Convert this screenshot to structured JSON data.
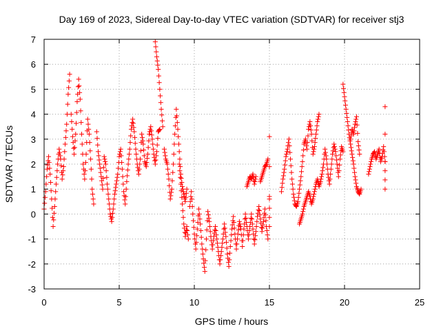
{
  "chart_data": {
    "type": "scatter",
    "title": "Day 169 of 2023, Sidereal Day-to-day VTEC variation (SDTVAR) for receiver stj3",
    "xlabel": "GPS time / hours",
    "ylabel": "SDTVAR / TECUs",
    "xlim": [
      0,
      25
    ],
    "ylim": [
      -3,
      7
    ],
    "x_ticks": [
      0,
      5,
      10,
      15,
      20,
      25
    ],
    "y_ticks": [
      -3,
      -2,
      -1,
      0,
      1,
      2,
      3,
      4,
      5,
      6,
      7
    ],
    "x_tick_labels": [
      "0",
      "5",
      "10",
      "15",
      "20",
      "25"
    ],
    "y_tick_labels": [
      "-3",
      "-2",
      "-1",
      "0",
      "1",
      "2",
      "3",
      "4",
      "5",
      "6",
      "7"
    ],
    "grid": true,
    "marker": "+",
    "color": "#ff0000",
    "series": [
      {
        "name": "sdtvar",
        "tracks": [
          [
            [
              0.0,
              0.2
            ],
            [
              0.1,
              0.9
            ],
            [
              0.2,
              1.8
            ],
            [
              0.3,
              2.3
            ],
            [
              0.4,
              1.6
            ],
            [
              0.5,
              0.6
            ],
            [
              0.6,
              -0.5
            ],
            [
              0.7,
              0.3
            ],
            [
              0.8,
              1.2
            ],
            [
              0.9,
              2.0
            ],
            [
              1.0,
              2.6
            ],
            [
              1.1,
              2.2
            ],
            [
              1.2,
              1.4
            ],
            [
              1.3,
              1.9
            ],
            [
              1.4,
              2.8
            ],
            [
              1.5,
              3.6
            ],
            [
              1.6,
              4.8
            ],
            [
              1.7,
              5.6
            ]
          ],
          [
            [
              1.8,
              4.0
            ],
            [
              1.9,
              3.1
            ],
            [
              2.0,
              2.4
            ],
            [
              2.1,
              3.2
            ],
            [
              2.2,
              4.5
            ],
            [
              2.3,
              5.4
            ],
            [
              2.4,
              4.6
            ],
            [
              2.5,
              3.2
            ],
            [
              2.6,
              2.0
            ],
            [
              2.7,
              1.4
            ],
            [
              2.8,
              2.4
            ],
            [
              2.9,
              3.8
            ],
            [
              3.0,
              3.2
            ],
            [
              3.1,
              2.2
            ],
            [
              3.2,
              1.0
            ],
            [
              3.3,
              0.4
            ]
          ],
          [
            [
              3.5,
              3.3
            ],
            [
              3.6,
              2.5
            ],
            [
              3.7,
              2.0
            ],
            [
              3.8,
              1.5
            ],
            [
              3.9,
              1.0
            ],
            [
              4.0,
              2.3
            ],
            [
              4.1,
              2.0
            ],
            [
              4.2,
              1.2
            ],
            [
              4.3,
              0.6
            ],
            [
              4.4,
              0.0
            ],
            [
              4.5,
              -0.3
            ],
            [
              4.6,
              0.2
            ],
            [
              4.7,
              0.8
            ],
            [
              4.8,
              1.2
            ],
            [
              4.9,
              1.6
            ],
            [
              5.0,
              2.3
            ],
            [
              5.1,
              2.6
            ],
            [
              5.2,
              1.8
            ],
            [
              5.3,
              0.9
            ],
            [
              5.4,
              0.4
            ],
            [
              5.5,
              1.3
            ],
            [
              5.6,
              2.0
            ],
            [
              5.7,
              2.6
            ],
            [
              5.8,
              3.4
            ],
            [
              5.9,
              3.8
            ],
            [
              6.0,
              3.3
            ],
            [
              6.1,
              2.6
            ],
            [
              6.2,
              2.0
            ],
            [
              6.3,
              1.6
            ],
            [
              6.4,
              2.2
            ],
            [
              6.5,
              3.2
            ],
            [
              6.6,
              2.8
            ],
            [
              6.7,
              2.1
            ],
            [
              6.8,
              1.9
            ],
            [
              6.9,
              2.4
            ],
            [
              7.0,
              3.2
            ],
            [
              7.1,
              3.5
            ],
            [
              7.2,
              3.0
            ],
            [
              7.3,
              2.4
            ],
            [
              7.4,
              2.0
            ],
            [
              7.5,
              2.5
            ],
            [
              7.6,
              3.3
            ],
            [
              7.7,
              3.4
            ]
          ],
          [
            [
              7.4,
              6.9
            ],
            [
              7.5,
              6.3
            ],
            [
              7.6,
              5.8
            ],
            [
              7.7,
              5.0
            ],
            [
              7.8,
              4.2
            ],
            [
              7.9,
              3.5
            ]
          ],
          [
            [
              8.0,
              2.6
            ],
            [
              8.1,
              2.2
            ],
            [
              8.2,
              2.0
            ],
            [
              8.3,
              1.4
            ],
            [
              8.4,
              0.6
            ],
            [
              8.5,
              1.0
            ],
            [
              8.6,
              2.0
            ],
            [
              8.7,
              3.2
            ],
            [
              8.8,
              4.2
            ],
            [
              8.9,
              3.4
            ],
            [
              9.0,
              2.5
            ],
            [
              9.1,
              1.6
            ],
            [
              9.2,
              1.1
            ],
            [
              9.3,
              0.8
            ],
            [
              9.4,
              0.5
            ],
            [
              9.5,
              1.0
            ]
          ],
          [
            [
              9.0,
              2.0
            ],
            [
              9.1,
              1.2
            ],
            [
              9.2,
              0.4
            ],
            [
              9.3,
              -0.4
            ],
            [
              9.4,
              -0.9
            ],
            [
              9.5,
              -0.5
            ],
            [
              9.6,
              -1.0
            ]
          ],
          [
            [
              9.7,
              0.3
            ],
            [
              9.8,
              0.9
            ],
            [
              9.9,
              0.0
            ],
            [
              10.0,
              -0.8
            ],
            [
              10.1,
              -1.4
            ],
            [
              10.2,
              -0.6
            ],
            [
              10.3,
              0.2
            ],
            [
              10.4,
              -0.4
            ],
            [
              10.5,
              -1.2
            ],
            [
              10.6,
              -1.8
            ],
            [
              10.7,
              -2.3
            ],
            [
              10.8,
              -1.0
            ],
            [
              10.9,
              0.1
            ],
            [
              11.0,
              -0.3
            ],
            [
              11.1,
              -0.9
            ],
            [
              11.2,
              -1.4
            ],
            [
              11.3,
              -0.9
            ],
            [
              11.4,
              -0.5
            ],
            [
              11.5,
              -1.0
            ],
            [
              11.6,
              -1.5
            ],
            [
              11.7,
              -2.0
            ],
            [
              11.8,
              -1.5
            ],
            [
              11.9,
              -1.0
            ],
            [
              12.0,
              -0.4
            ],
            [
              12.1,
              -0.9
            ],
            [
              12.2,
              -1.6
            ],
            [
              12.3,
              -2.1
            ],
            [
              12.4,
              -1.3
            ],
            [
              12.5,
              -0.6
            ],
            [
              12.6,
              -0.1
            ],
            [
              12.7,
              -0.8
            ],
            [
              12.8,
              -1.4
            ],
            [
              12.9,
              -0.8
            ],
            [
              13.0,
              -0.3
            ],
            [
              13.1,
              -0.6
            ],
            [
              13.2,
              -1.3
            ],
            [
              13.3,
              -0.6
            ],
            [
              13.4,
              0.0
            ],
            [
              13.5,
              -0.5
            ],
            [
              13.6,
              -1.0
            ],
            [
              13.7,
              -0.5
            ],
            [
              13.8,
              0.0
            ],
            [
              13.9,
              -0.6
            ],
            [
              14.0,
              -1.2
            ],
            [
              14.1,
              -0.7
            ],
            [
              14.2,
              -0.1
            ],
            [
              14.3,
              0.3
            ],
            [
              14.4,
              -0.2
            ],
            [
              14.5,
              -0.7
            ],
            [
              14.6,
              -0.3
            ],
            [
              14.7,
              0.2
            ],
            [
              14.8,
              -0.5
            ],
            [
              14.9,
              -1.0
            ]
          ],
          [
            [
              13.5,
              1.1
            ],
            [
              13.6,
              1.3
            ],
            [
              13.7,
              1.5
            ],
            [
              13.8,
              1.4
            ],
            [
              13.9,
              1.6
            ],
            [
              14.0,
              1.2
            ],
            [
              14.1,
              1.5
            ]
          ],
          [
            [
              14.4,
              1.3
            ],
            [
              14.5,
              1.5
            ],
            [
              14.6,
              1.7
            ],
            [
              14.7,
              1.9
            ],
            [
              14.8,
              2.0
            ],
            [
              14.9,
              2.2
            ]
          ],
          [
            [
              15.0,
              0.6
            ],
            [
              15.0,
              -0.5
            ],
            [
              15.0,
              3.1
            ]
          ],
          [
            [
              15.8,
              0.9
            ],
            [
              15.9,
              1.4
            ],
            [
              16.0,
              1.8
            ],
            [
              16.1,
              2.3
            ],
            [
              16.2,
              2.6
            ],
            [
              16.3,
              3.0
            ],
            [
              16.4,
              2.2
            ],
            [
              16.5,
              1.4
            ],
            [
              16.6,
              0.8
            ],
            [
              16.7,
              0.4
            ],
            [
              16.8,
              0.3
            ],
            [
              16.9,
              0.5
            ],
            [
              17.0,
              1.0
            ],
            [
              17.1,
              1.5
            ],
            [
              17.2,
              2.1
            ],
            [
              17.3,
              2.8
            ],
            [
              17.4,
              3.0
            ],
            [
              17.5,
              2.6
            ],
            [
              17.6,
              3.4
            ],
            [
              17.7,
              3.7
            ],
            [
              17.8,
              3.2
            ],
            [
              17.9,
              2.4
            ],
            [
              18.0,
              2.7
            ],
            [
              18.1,
              3.2
            ],
            [
              18.2,
              3.7
            ],
            [
              18.3,
              4.0
            ]
          ],
          [
            [
              17.0,
              -0.4
            ],
            [
              17.1,
              -0.2
            ],
            [
              17.2,
              0.0
            ],
            [
              17.3,
              0.3
            ],
            [
              17.4,
              0.5
            ],
            [
              17.5,
              0.7
            ],
            [
              17.6,
              0.9
            ],
            [
              17.7,
              0.7
            ],
            [
              17.8,
              0.4
            ],
            [
              17.9,
              0.6
            ],
            [
              18.0,
              0.9
            ],
            [
              18.1,
              1.2
            ],
            [
              18.2,
              1.4
            ],
            [
              18.3,
              1.1
            ],
            [
              18.4,
              1.3
            ],
            [
              18.5,
              1.6
            ],
            [
              18.6,
              2.0
            ],
            [
              18.7,
              2.6
            ],
            [
              18.8,
              2.2
            ],
            [
              18.9,
              1.6
            ],
            [
              19.0,
              1.2
            ],
            [
              19.1,
              1.8
            ],
            [
              19.2,
              2.4
            ],
            [
              19.3,
              2.8
            ],
            [
              19.4,
              2.5
            ],
            [
              19.5,
              2.0
            ],
            [
              19.6,
              1.5
            ],
            [
              19.7,
              2.2
            ],
            [
              19.8,
              2.7
            ],
            [
              19.9,
              2.5
            ]
          ],
          [
            [
              19.9,
              5.2
            ],
            [
              20.0,
              4.7
            ],
            [
              20.1,
              4.2
            ],
            [
              20.2,
              3.7
            ],
            [
              20.3,
              3.2
            ],
            [
              20.4,
              2.8
            ],
            [
              20.5,
              2.4
            ],
            [
              20.6,
              2.0
            ],
            [
              20.7,
              1.5
            ],
            [
              20.8,
              1.1
            ],
            [
              20.9,
              0.9
            ],
            [
              21.0,
              0.8
            ],
            [
              21.1,
              1.0
            ]
          ],
          [
            [
              20.4,
              3.0
            ],
            [
              20.5,
              3.4
            ],
            [
              20.6,
              3.2
            ],
            [
              20.7,
              3.6
            ],
            [
              20.8,
              3.9
            ],
            [
              20.9,
              2.9
            ],
            [
              21.0,
              2.4
            ]
          ],
          [
            [
              21.6,
              1.6
            ],
            [
              21.7,
              1.9
            ],
            [
              21.8,
              2.2
            ],
            [
              21.9,
              2.4
            ],
            [
              22.0,
              2.5
            ],
            [
              22.1,
              2.2
            ],
            [
              22.2,
              2.4
            ],
            [
              22.3,
              2.6
            ],
            [
              22.4,
              2.1
            ],
            [
              22.5,
              2.3
            ],
            [
              22.6,
              2.7
            ],
            [
              22.7,
              2.1
            ],
            [
              22.7,
              1.0
            ],
            [
              22.7,
              4.3
            ]
          ]
        ]
      }
    ]
  }
}
